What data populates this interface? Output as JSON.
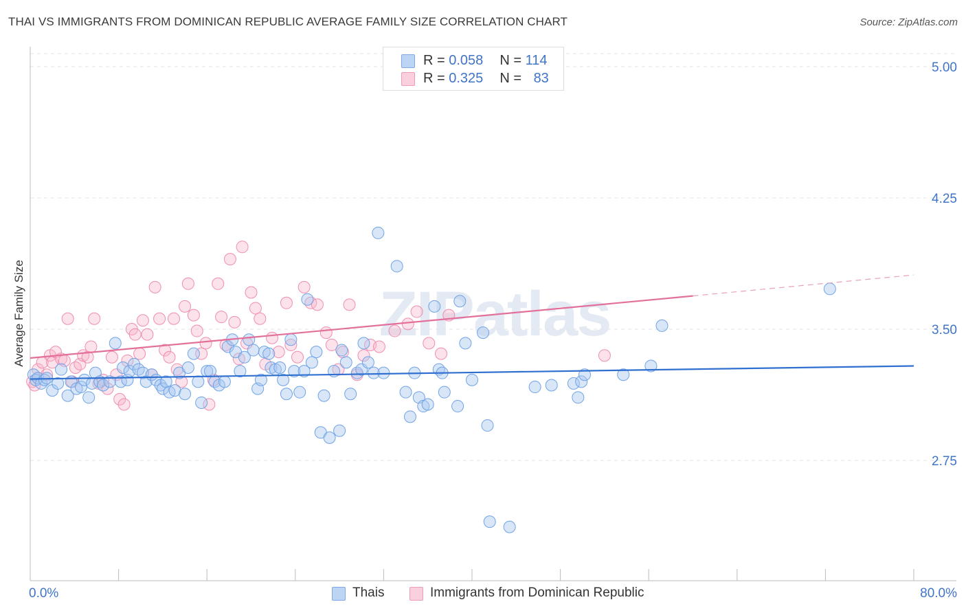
{
  "title": "THAI VS IMMIGRANTS FROM DOMINICAN REPUBLIC AVERAGE FAMILY SIZE CORRELATION CHART",
  "source": "Source: ZipAtlas.com",
  "watermark": "ZIPatlas",
  "legend": {
    "rows": [
      {
        "r_label": "R = ",
        "r_value": "0.058",
        "n_label": "N = ",
        "n_value": "114",
        "color": "#a9c8f0"
      },
      {
        "r_label": "R = ",
        "r_value": "0.325",
        "n_label": "N = ",
        "n_value": "83",
        "color": "#f7b6cb"
      }
    ]
  },
  "bottom_legend": [
    {
      "label": "Thais",
      "color": "#a9c8f0"
    },
    {
      "label": "Immigrants from Dominican Republic",
      "color": "#f7b6cb"
    }
  ],
  "chart_data": {
    "type": "scatter",
    "title": "THAI VS IMMIGRANTS FROM DOMINICAN REPUBLIC AVERAGE FAMILY SIZE CORRELATION CHART",
    "xlabel": "",
    "ylabel": "Average Family Size",
    "x_tick_labels": [
      "0.0%",
      "80.0%"
    ],
    "y_tick_labels": [
      "5.00",
      "4.25",
      "3.50",
      "2.75"
    ],
    "y_ticks": [
      5.0,
      4.25,
      3.5,
      2.75
    ],
    "xlim": [
      0,
      80
    ],
    "ylim": [
      2.0,
      5.1
    ],
    "grid": true,
    "legend_position": "top-center",
    "series": [
      {
        "name": "Thais",
        "color": "#6fa3e6",
        "trend": {
          "x": [
            0,
            80
          ],
          "y": [
            3.215,
            3.29
          ]
        },
        "points": [
          [
            0.3,
            3.24
          ],
          [
            0.5,
            3.21
          ],
          [
            0.7,
            3.22
          ],
          [
            1.0,
            3.19
          ],
          [
            1.3,
            3.21
          ],
          [
            1.5,
            3.22
          ],
          [
            2.0,
            3.15
          ],
          [
            2.5,
            3.19
          ],
          [
            2.8,
            3.27
          ],
          [
            3.4,
            3.12
          ],
          [
            3.7,
            3.2
          ],
          [
            4.2,
            3.16
          ],
          [
            4.6,
            3.17
          ],
          [
            4.9,
            3.21
          ],
          [
            5.3,
            3.11
          ],
          [
            5.6,
            3.19
          ],
          [
            5.9,
            3.25
          ],
          [
            6.3,
            3.2
          ],
          [
            6.6,
            3.18
          ],
          [
            7.2,
            3.2
          ],
          [
            7.7,
            3.42
          ],
          [
            8.2,
            3.2
          ],
          [
            8.4,
            3.28
          ],
          [
            8.8,
            3.21
          ],
          [
            9.0,
            3.26
          ],
          [
            9.4,
            3.3
          ],
          [
            9.8,
            3.27
          ],
          [
            10.2,
            3.25
          ],
          [
            10.5,
            3.2
          ],
          [
            11.0,
            3.24
          ],
          [
            11.4,
            3.21
          ],
          [
            11.8,
            3.18
          ],
          [
            12.0,
            3.16
          ],
          [
            12.3,
            3.2
          ],
          [
            12.6,
            3.14
          ],
          [
            13.1,
            3.15
          ],
          [
            13.5,
            3.25
          ],
          [
            14.0,
            3.13
          ],
          [
            14.3,
            3.28
          ],
          [
            14.8,
            3.36
          ],
          [
            15.2,
            3.2
          ],
          [
            15.5,
            3.08
          ],
          [
            16.0,
            3.26
          ],
          [
            16.3,
            3.26
          ],
          [
            16.7,
            3.2
          ],
          [
            17.1,
            3.18
          ],
          [
            17.6,
            3.2
          ],
          [
            17.9,
            3.4
          ],
          [
            18.3,
            3.44
          ],
          [
            18.6,
            3.37
          ],
          [
            19.0,
            3.26
          ],
          [
            19.4,
            3.34
          ],
          [
            19.8,
            3.44
          ],
          [
            20.2,
            3.38
          ],
          [
            20.6,
            3.16
          ],
          [
            20.9,
            3.21
          ],
          [
            21.2,
            3.37
          ],
          [
            21.6,
            3.36
          ],
          [
            21.8,
            3.28
          ],
          [
            22.2,
            3.27
          ],
          [
            22.6,
            3.28
          ],
          [
            22.9,
            3.21
          ],
          [
            23.2,
            3.13
          ],
          [
            23.6,
            3.44
          ],
          [
            23.9,
            3.26
          ],
          [
            24.4,
            3.14
          ],
          [
            24.8,
            3.26
          ],
          [
            25.1,
            3.67
          ],
          [
            25.5,
            3.31
          ],
          [
            25.9,
            3.37
          ],
          [
            26.3,
            2.91
          ],
          [
            26.6,
            3.12
          ],
          [
            27.1,
            2.88
          ],
          [
            27.5,
            3.26
          ],
          [
            28.0,
            2.92
          ],
          [
            28.2,
            3.38
          ],
          [
            28.6,
            3.31
          ],
          [
            29.0,
            3.13
          ],
          [
            29.6,
            3.25
          ],
          [
            30.0,
            3.27
          ],
          [
            30.2,
            3.42
          ],
          [
            30.6,
            3.31
          ],
          [
            31.1,
            3.25
          ],
          [
            31.5,
            4.05
          ],
          [
            32.0,
            3.25
          ],
          [
            33.2,
            3.86
          ],
          [
            34.0,
            3.14
          ],
          [
            34.4,
            3.0
          ],
          [
            34.8,
            3.25
          ],
          [
            35.2,
            3.11
          ],
          [
            35.6,
            3.06
          ],
          [
            36.0,
            3.07
          ],
          [
            36.6,
            3.63
          ],
          [
            37.0,
            3.27
          ],
          [
            37.3,
            3.25
          ],
          [
            37.5,
            3.14
          ],
          [
            38.7,
            3.06
          ],
          [
            38.9,
            3.66
          ],
          [
            39.4,
            3.42
          ],
          [
            40.0,
            3.21
          ],
          [
            41.0,
            3.48
          ],
          [
            41.4,
            2.95
          ],
          [
            41.6,
            2.4
          ],
          [
            43.4,
            2.37
          ],
          [
            45.7,
            3.17
          ],
          [
            47.2,
            3.18
          ],
          [
            49.2,
            3.19
          ],
          [
            49.6,
            3.11
          ],
          [
            49.9,
            3.2
          ],
          [
            50.2,
            3.24
          ],
          [
            53.7,
            3.24
          ],
          [
            56.2,
            3.29
          ],
          [
            57.2,
            3.52
          ],
          [
            72.4,
            3.73
          ]
        ]
      },
      {
        "name": "Immigrants from Dominican Republic",
        "color": "#f08db0",
        "trend": {
          "x": [
            0,
            60
          ],
          "y": [
            3.335,
            3.69
          ],
          "dashed_to": {
            "x": 80,
            "y": 3.81
          }
        },
        "points": [
          [
            0.2,
            3.2
          ],
          [
            0.4,
            3.18
          ],
          [
            0.7,
            3.27
          ],
          [
            1.1,
            3.31
          ],
          [
            1.5,
            3.24
          ],
          [
            1.8,
            3.35
          ],
          [
            2.0,
            3.31
          ],
          [
            2.3,
            3.37
          ],
          [
            2.8,
            3.33
          ],
          [
            3.1,
            3.32
          ],
          [
            3.4,
            3.56
          ],
          [
            3.8,
            3.2
          ],
          [
            4.1,
            3.28
          ],
          [
            4.5,
            3.3
          ],
          [
            4.8,
            3.35
          ],
          [
            5.2,
            3.34
          ],
          [
            5.5,
            3.4
          ],
          [
            5.8,
            3.56
          ],
          [
            6.2,
            3.19
          ],
          [
            6.6,
            3.21
          ],
          [
            7.0,
            3.16
          ],
          [
            7.4,
            3.34
          ],
          [
            7.8,
            3.24
          ],
          [
            8.1,
            3.1
          ],
          [
            8.5,
            3.07
          ],
          [
            8.8,
            3.32
          ],
          [
            9.2,
            3.5
          ],
          [
            9.5,
            3.47
          ],
          [
            9.9,
            3.36
          ],
          [
            10.2,
            3.55
          ],
          [
            10.6,
            3.47
          ],
          [
            11.0,
            3.24
          ],
          [
            11.3,
            3.74
          ],
          [
            11.7,
            3.56
          ],
          [
            12.2,
            3.38
          ],
          [
            12.6,
            3.34
          ],
          [
            13.0,
            3.56
          ],
          [
            13.3,
            3.27
          ],
          [
            13.7,
            3.2
          ],
          [
            14.0,
            3.63
          ],
          [
            14.3,
            3.76
          ],
          [
            14.8,
            3.58
          ],
          [
            15.1,
            3.49
          ],
          [
            15.5,
            3.36
          ],
          [
            15.9,
            3.42
          ],
          [
            16.2,
            3.07
          ],
          [
            16.6,
            3.21
          ],
          [
            17.0,
            3.76
          ],
          [
            17.3,
            3.57
          ],
          [
            17.7,
            3.41
          ],
          [
            18.1,
            3.9
          ],
          [
            18.5,
            3.54
          ],
          [
            18.9,
            3.33
          ],
          [
            19.2,
            3.97
          ],
          [
            19.6,
            3.42
          ],
          [
            20.0,
            3.71
          ],
          [
            20.4,
            3.62
          ],
          [
            20.8,
            3.56
          ],
          [
            21.3,
            3.3
          ],
          [
            21.9,
            3.45
          ],
          [
            22.5,
            3.37
          ],
          [
            23.2,
            3.65
          ],
          [
            23.6,
            3.41
          ],
          [
            24.2,
            3.34
          ],
          [
            24.8,
            3.74
          ],
          [
            25.4,
            3.65
          ],
          [
            26.0,
            3.64
          ],
          [
            26.8,
            3.48
          ],
          [
            27.3,
            3.41
          ],
          [
            27.9,
            3.27
          ],
          [
            28.3,
            3.37
          ],
          [
            28.9,
            3.64
          ],
          [
            29.6,
            3.24
          ],
          [
            30.2,
            3.35
          ],
          [
            30.8,
            3.41
          ],
          [
            31.6,
            3.4
          ],
          [
            33.0,
            3.49
          ],
          [
            34.2,
            3.53
          ],
          [
            35.0,
            3.6
          ],
          [
            36.1,
            3.42
          ],
          [
            37.2,
            3.36
          ],
          [
            37.9,
            3.58
          ],
          [
            52.0,
            3.35
          ]
        ]
      }
    ]
  }
}
